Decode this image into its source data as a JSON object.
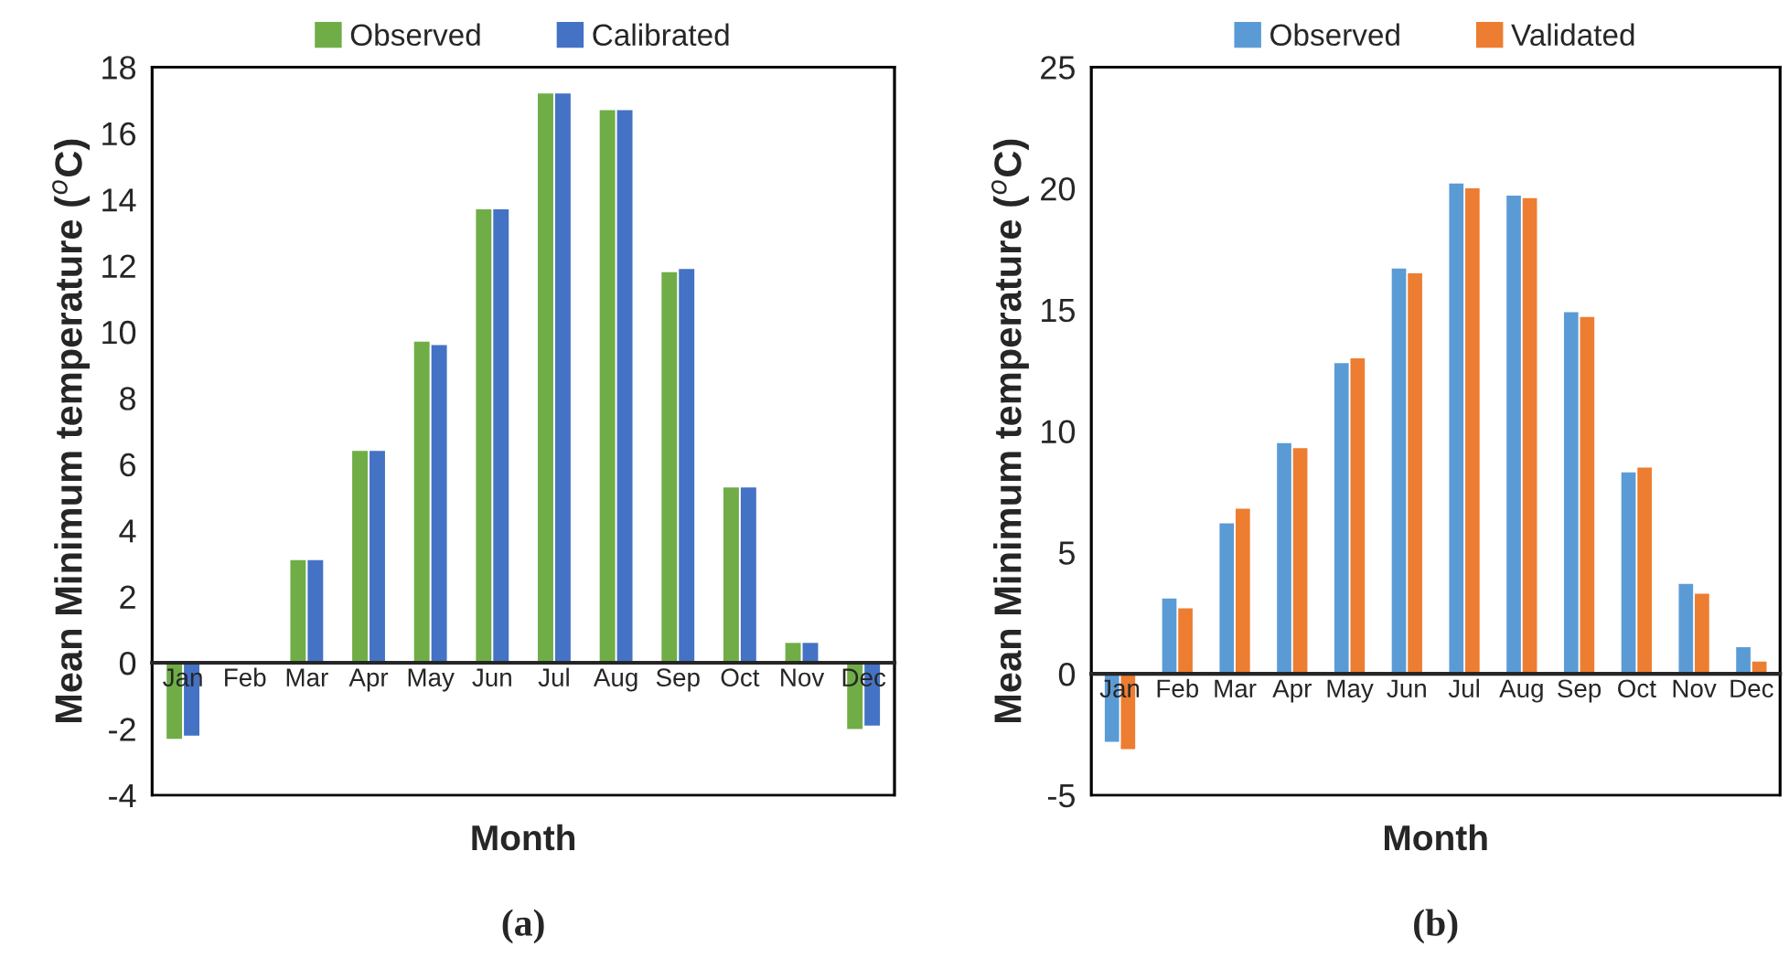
{
  "chart_data": [
    {
      "type": "bar",
      "title": "(a)",
      "xlabel": "Month",
      "ylabel": "Mean Minimum temperature ($^{o}$C)",
      "categories": [
        "Jan",
        "Feb",
        "Mar",
        "Apr",
        "May",
        "Jun",
        "Jul",
        "Aug",
        "Sep",
        "Oct",
        "Nov",
        "Dec"
      ],
      "series": [
        {
          "name": "Observed",
          "color": "#70ad47",
          "values": [
            -2.3,
            0,
            3.1,
            6.4,
            9.7,
            13.7,
            17.2,
            16.7,
            11.8,
            5.3,
            0.6,
            -2.0
          ]
        },
        {
          "name": "Calibrated",
          "color": "#4472c4",
          "values": [
            -2.2,
            0,
            3.1,
            6.4,
            9.6,
            13.7,
            17.2,
            16.7,
            11.9,
            5.3,
            0.6,
            -1.9
          ]
        }
      ],
      "ylim": [
        -4,
        18
      ],
      "yticks": [
        -4,
        -2,
        0,
        2,
        4,
        6,
        8,
        10,
        12,
        14,
        16,
        18
      ],
      "grid": false,
      "legend": "top"
    },
    {
      "type": "bar",
      "title": "(b)",
      "xlabel": "Month",
      "ylabel": "Mean Minimum temperature ($^{o}$C)",
      "categories": [
        "Jan",
        "Feb",
        "Mar",
        "Apr",
        "May",
        "Jun",
        "Jul",
        "Aug",
        "Sep",
        "Oct",
        "Nov",
        "Dec"
      ],
      "series": [
        {
          "name": "Observed",
          "color": "#5b9bd5",
          "values": [
            -2.8,
            3.1,
            6.2,
            9.5,
            12.8,
            16.7,
            20.2,
            19.7,
            14.9,
            8.3,
            3.7,
            1.1
          ]
        },
        {
          "name": "Validated",
          "color": "#ed7d31",
          "values": [
            -3.1,
            2.7,
            6.8,
            9.3,
            13.0,
            16.5,
            20.0,
            19.6,
            14.7,
            8.5,
            3.3,
            0.5
          ]
        }
      ],
      "ylim": [
        -5,
        25
      ],
      "yticks": [
        -5,
        0,
        5,
        10,
        15,
        20,
        25
      ],
      "grid": false,
      "legend": "top"
    }
  ]
}
